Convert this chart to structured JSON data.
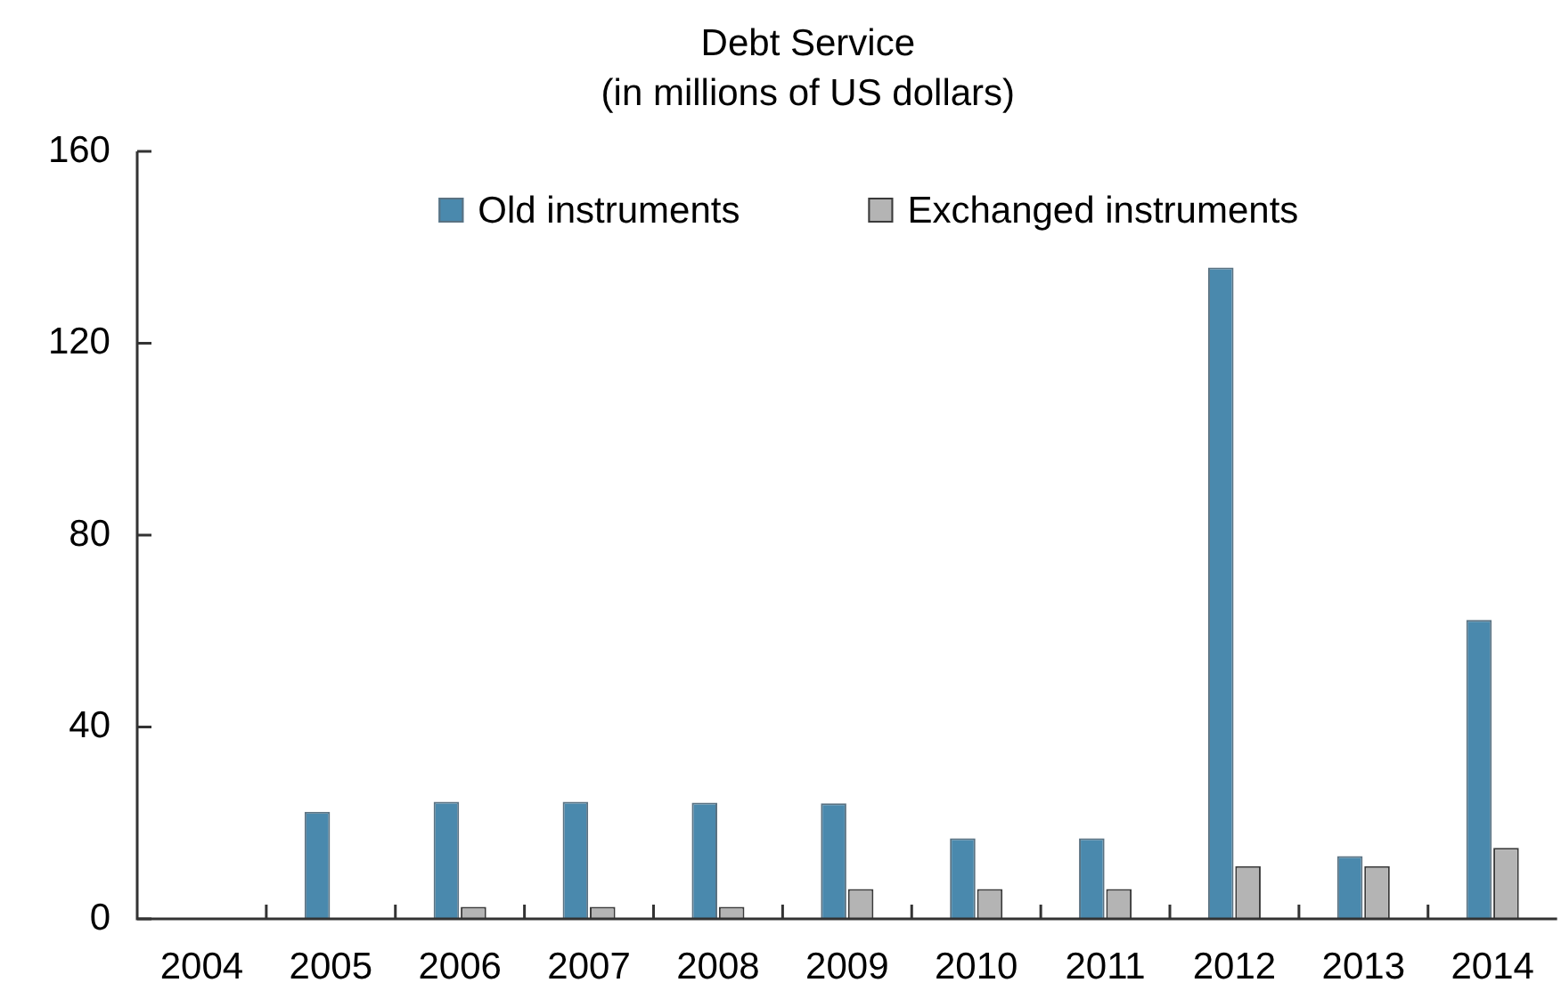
{
  "chart_data": {
    "type": "bar",
    "title": "Debt Service",
    "subtitle": "(in millions of US dollars)",
    "categories": [
      "2004",
      "2005",
      "2006",
      "2007",
      "2008",
      "2009",
      "2010",
      "2011",
      "2012",
      "2013",
      "2014"
    ],
    "series": [
      {
        "name": "Old instruments",
        "color": "#4a89ad",
        "values": [
          null,
          22.3,
          24.4,
          24.4,
          24.2,
          24.1,
          16.8,
          16.8,
          135.8,
          13.1,
          62.3
        ]
      },
      {
        "name": "Exchanged instruments",
        "color": "#b4b4b4",
        "values": [
          null,
          null,
          2.5,
          2.5,
          2.5,
          6.2,
          6.2,
          6.2,
          11.0,
          11.0,
          14.8
        ]
      }
    ],
    "ylim": [
      0,
      160
    ],
    "yticks": [
      0,
      40,
      80,
      120,
      160
    ],
    "grid": false,
    "legend": "top"
  }
}
